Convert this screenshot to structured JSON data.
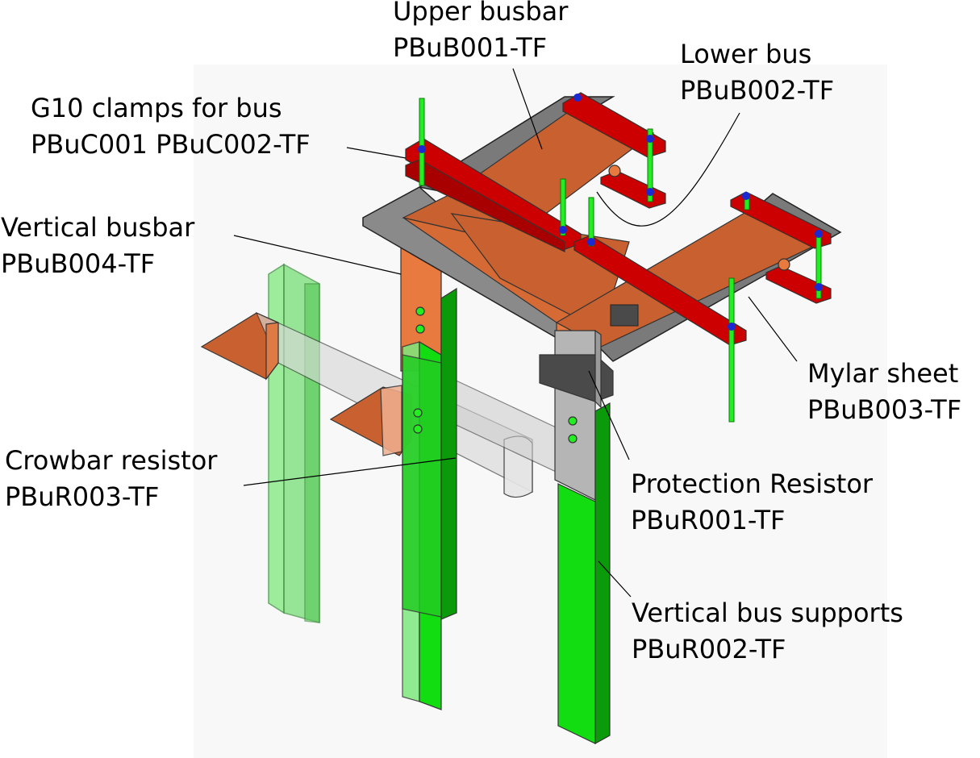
{
  "labels": {
    "upper_busbar": {
      "name": "Upper busbar",
      "part": "PBuB001-TF"
    },
    "lower_bus": {
      "name": "Lower bus",
      "part": "PBuB002-TF"
    },
    "g10_clamps": {
      "name": "G10 clamps for bus",
      "part": "PBuC001 PBuC002-TF"
    },
    "vertical_busbar": {
      "name": "Vertical busbar",
      "part": "PBuB004-TF"
    },
    "mylar_sheet": {
      "name": "Mylar sheet",
      "part": "PBuB003-TF"
    },
    "crowbar_resistor": {
      "name": "Crowbar resistor",
      "part": "PBuR003-TF"
    },
    "protection_resistor": {
      "name": "Protection Resistor",
      "part": "PBuR001-TF"
    },
    "vertical_bus_supports": {
      "name": "Vertical bus supports",
      "part": "PBuR002-TF"
    }
  },
  "colors": {
    "copper": "#c8602f",
    "copper_light": "#e0713a",
    "g10_red": "#cc0000",
    "support_green": "#11dd11",
    "support_green_dark": "#0a9a0a",
    "translucent_green": "#66e066",
    "mylar_gray": "#7a7a7a",
    "resistor_gray": "#b5b5b5",
    "block_dark": "#4a4a4a",
    "bolt_green": "#22ee22",
    "bolt_blue": "#1a2ad0"
  }
}
